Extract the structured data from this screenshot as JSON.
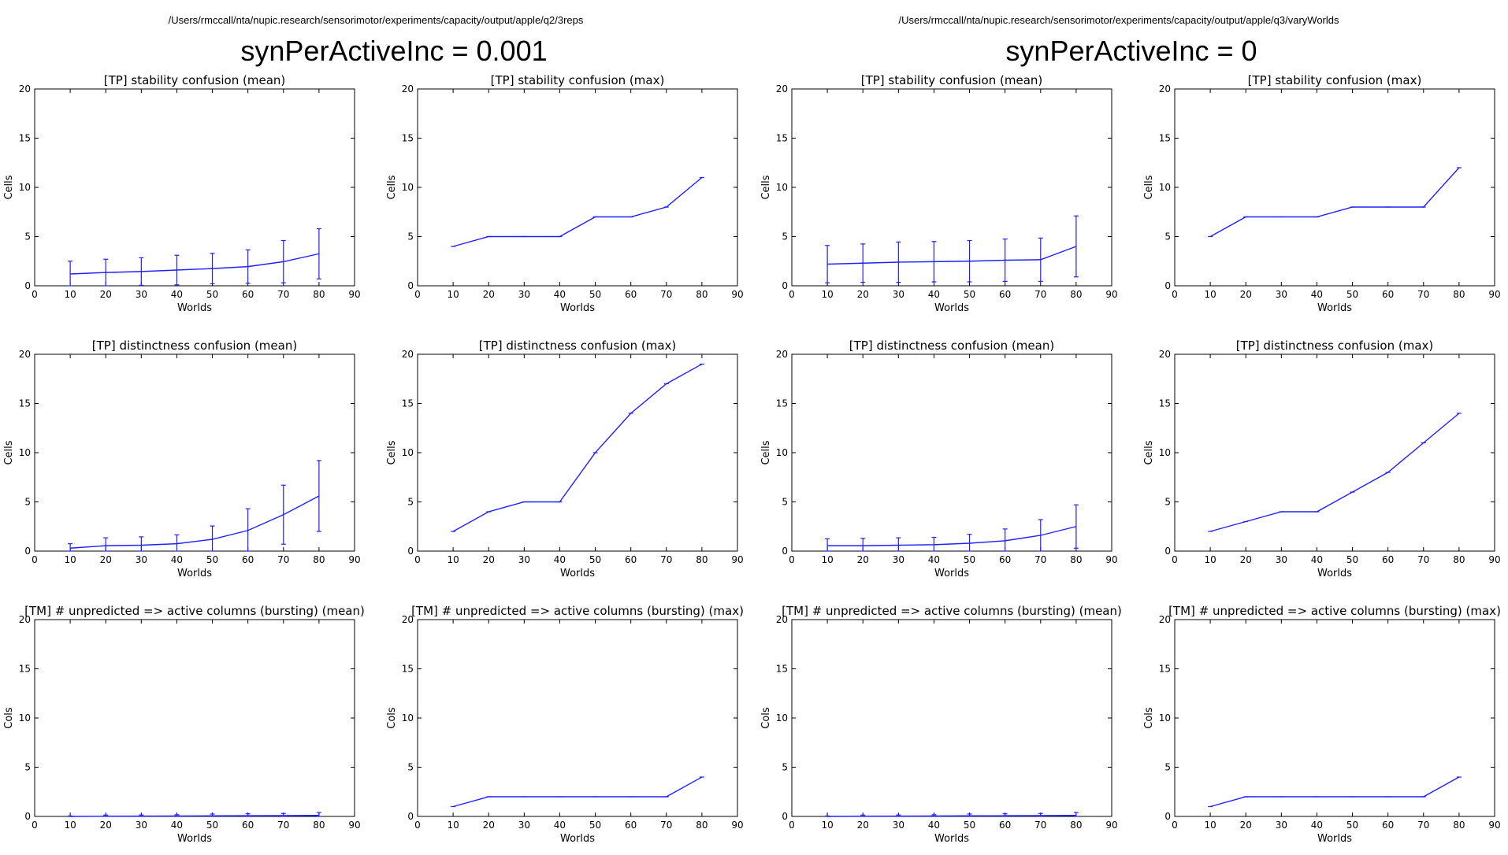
{
  "header": {
    "left_path": "/Users/rmccall/nta/nupic.research/sensorimotor/experiments/capacity/output/apple/q2/3reps",
    "right_path": "/Users/rmccall/nta/nupic.research/sensorimotor/experiments/capacity/output/apple/q3/varyWorlds",
    "left_title": "synPerActiveInc = 0.001",
    "right_title": "synPerActiveInc = 0"
  },
  "colors": {
    "series": "#2020ff"
  },
  "chart_data": [
    {
      "type": "line",
      "title": "[TP] stability confusion (mean)",
      "xlabel": "Worlds",
      "ylabel": "Cells",
      "xlim": [
        0,
        90
      ],
      "ylim": [
        0,
        20
      ],
      "xticks": [
        0,
        10,
        20,
        30,
        40,
        50,
        60,
        70,
        80,
        90
      ],
      "yticks": [
        0,
        5,
        10,
        15,
        20
      ],
      "x": [
        10,
        20,
        30,
        40,
        50,
        60,
        70,
        80
      ],
      "values": [
        1.2,
        1.35,
        1.45,
        1.6,
        1.75,
        1.95,
        2.45,
        3.25
      ],
      "errors": [
        1.3,
        1.35,
        1.4,
        1.5,
        1.55,
        1.7,
        2.15,
        2.55
      ]
    },
    {
      "type": "line",
      "title": "[TP] stability confusion (max)",
      "xlabel": "Worlds",
      "ylabel": "Cells",
      "xlim": [
        0,
        90
      ],
      "ylim": [
        0,
        20
      ],
      "xticks": [
        0,
        10,
        20,
        30,
        40,
        50,
        60,
        70,
        80,
        90
      ],
      "yticks": [
        0,
        5,
        10,
        15,
        20
      ],
      "x": [
        10,
        20,
        30,
        40,
        50,
        60,
        70,
        80
      ],
      "values": [
        4,
        5,
        5,
        5,
        7,
        7,
        8,
        11
      ]
    },
    {
      "type": "line",
      "title": "[TP] stability confusion (mean)",
      "xlabel": "Worlds",
      "ylabel": "Cells",
      "xlim": [
        0,
        90
      ],
      "ylim": [
        0,
        20
      ],
      "xticks": [
        0,
        10,
        20,
        30,
        40,
        50,
        60,
        70,
        80,
        90
      ],
      "yticks": [
        0,
        5,
        10,
        15,
        20
      ],
      "x": [
        10,
        20,
        30,
        40,
        50,
        60,
        70,
        80
      ],
      "values": [
        2.2,
        2.3,
        2.4,
        2.45,
        2.5,
        2.6,
        2.65,
        4.0
      ],
      "errors": [
        1.9,
        1.95,
        2.05,
        2.05,
        2.1,
        2.15,
        2.2,
        3.1
      ]
    },
    {
      "type": "line",
      "title": "[TP] stability confusion (max)",
      "xlabel": "Worlds",
      "ylabel": "Cells",
      "xlim": [
        0,
        90
      ],
      "ylim": [
        0,
        20
      ],
      "xticks": [
        0,
        10,
        20,
        30,
        40,
        50,
        60,
        70,
        80,
        90
      ],
      "yticks": [
        0,
        5,
        10,
        15,
        20
      ],
      "x": [
        10,
        20,
        30,
        40,
        50,
        60,
        70,
        80
      ],
      "values": [
        5,
        7,
        7,
        7,
        8,
        8,
        8,
        12
      ]
    },
    {
      "type": "line",
      "title": "[TP] distinctness confusion (mean)",
      "xlabel": "Worlds",
      "ylabel": "Cells",
      "xlim": [
        0,
        90
      ],
      "ylim": [
        0,
        20
      ],
      "xticks": [
        0,
        10,
        20,
        30,
        40,
        50,
        60,
        70,
        80,
        90
      ],
      "yticks": [
        0,
        5,
        10,
        15,
        20
      ],
      "x": [
        10,
        20,
        30,
        40,
        50,
        60,
        70,
        80
      ],
      "values": [
        0.3,
        0.55,
        0.6,
        0.75,
        1.2,
        2.1,
        3.7,
        5.6
      ],
      "errors": [
        0.45,
        0.8,
        0.85,
        0.9,
        1.35,
        2.2,
        3.0,
        3.6
      ]
    },
    {
      "type": "line",
      "title": "[TP] distinctness confusion (max)",
      "xlabel": "Worlds",
      "ylabel": "Cells",
      "xlim": [
        0,
        90
      ],
      "ylim": [
        0,
        20
      ],
      "xticks": [
        0,
        10,
        20,
        30,
        40,
        50,
        60,
        70,
        80,
        90
      ],
      "yticks": [
        0,
        5,
        10,
        15,
        20
      ],
      "x": [
        10,
        20,
        30,
        40,
        50,
        60,
        70,
        80
      ],
      "values": [
        2,
        4,
        5,
        5,
        10,
        14,
        17,
        19
      ]
    },
    {
      "type": "line",
      "title": "[TP] distinctness confusion (mean)",
      "xlabel": "Worlds",
      "ylabel": "Cells",
      "xlim": [
        0,
        90
      ],
      "ylim": [
        0,
        20
      ],
      "xticks": [
        0,
        10,
        20,
        30,
        40,
        50,
        60,
        70,
        80,
        90
      ],
      "yticks": [
        0,
        5,
        10,
        15,
        20
      ],
      "x": [
        10,
        20,
        30,
        40,
        50,
        60,
        70,
        80
      ],
      "values": [
        0.55,
        0.55,
        0.6,
        0.65,
        0.8,
        1.05,
        1.6,
        2.5
      ],
      "errors": [
        0.7,
        0.75,
        0.75,
        0.75,
        0.9,
        1.2,
        1.6,
        2.2
      ]
    },
    {
      "type": "line",
      "title": "[TP] distinctness confusion (max)",
      "xlabel": "Worlds",
      "ylabel": "Cells",
      "xlim": [
        0,
        90
      ],
      "ylim": [
        0,
        20
      ],
      "xticks": [
        0,
        10,
        20,
        30,
        40,
        50,
        60,
        70,
        80,
        90
      ],
      "yticks": [
        0,
        5,
        10,
        15,
        20
      ],
      "x": [
        10,
        20,
        30,
        40,
        50,
        60,
        70,
        80
      ],
      "values": [
        2,
        3,
        4,
        4,
        6,
        8,
        11,
        14
      ]
    },
    {
      "type": "line",
      "title": "[TM] # unpredicted => active columns (bursting) (mean)",
      "xlabel": "Worlds",
      "ylabel": "Cols",
      "xlim": [
        0,
        90
      ],
      "ylim": [
        0,
        20
      ],
      "xticks": [
        0,
        10,
        20,
        30,
        40,
        50,
        60,
        70,
        80,
        90
      ],
      "yticks": [
        0,
        5,
        10,
        15,
        20
      ],
      "x": [
        10,
        20,
        30,
        40,
        50,
        60,
        70,
        80
      ],
      "values": [
        0.0,
        0.02,
        0.03,
        0.04,
        0.06,
        0.07,
        0.08,
        0.1
      ],
      "errors": [
        0.05,
        0.12,
        0.12,
        0.13,
        0.18,
        0.2,
        0.22,
        0.3
      ]
    },
    {
      "type": "line",
      "title": "[TM] # unpredicted => active columns (bursting) (max)",
      "xlabel": "Worlds",
      "ylabel": "Cols",
      "xlim": [
        0,
        90
      ],
      "ylim": [
        0,
        20
      ],
      "xticks": [
        0,
        10,
        20,
        30,
        40,
        50,
        60,
        70,
        80,
        90
      ],
      "yticks": [
        0,
        5,
        10,
        15,
        20
      ],
      "x": [
        10,
        20,
        30,
        40,
        50,
        60,
        70,
        80
      ],
      "values": [
        1,
        2,
        2,
        2,
        2,
        2,
        2,
        4
      ]
    },
    {
      "type": "line",
      "title": "[TM] # unpredicted => active columns (bursting) (mean)",
      "xlabel": "Worlds",
      "ylabel": "Cols",
      "xlim": [
        0,
        90
      ],
      "ylim": [
        0,
        20
      ],
      "xticks": [
        0,
        10,
        20,
        30,
        40,
        50,
        60,
        70,
        80,
        90
      ],
      "yticks": [
        0,
        5,
        10,
        15,
        20
      ],
      "x": [
        10,
        20,
        30,
        40,
        50,
        60,
        70,
        80
      ],
      "values": [
        0.0,
        0.02,
        0.03,
        0.04,
        0.06,
        0.07,
        0.08,
        0.1
      ],
      "errors": [
        0.05,
        0.12,
        0.12,
        0.13,
        0.18,
        0.2,
        0.22,
        0.3
      ]
    },
    {
      "type": "line",
      "title": "[TM] # unpredicted => active columns (bursting) (max)",
      "xlabel": "Worlds",
      "ylabel": "Cols",
      "xlim": [
        0,
        90
      ],
      "ylim": [
        0,
        20
      ],
      "xticks": [
        0,
        10,
        20,
        30,
        40,
        50,
        60,
        70,
        80,
        90
      ],
      "yticks": [
        0,
        5,
        10,
        15,
        20
      ],
      "x": [
        10,
        20,
        30,
        40,
        50,
        60,
        70,
        80
      ],
      "values": [
        1,
        2,
        2,
        2,
        2,
        2,
        2,
        4
      ]
    }
  ]
}
